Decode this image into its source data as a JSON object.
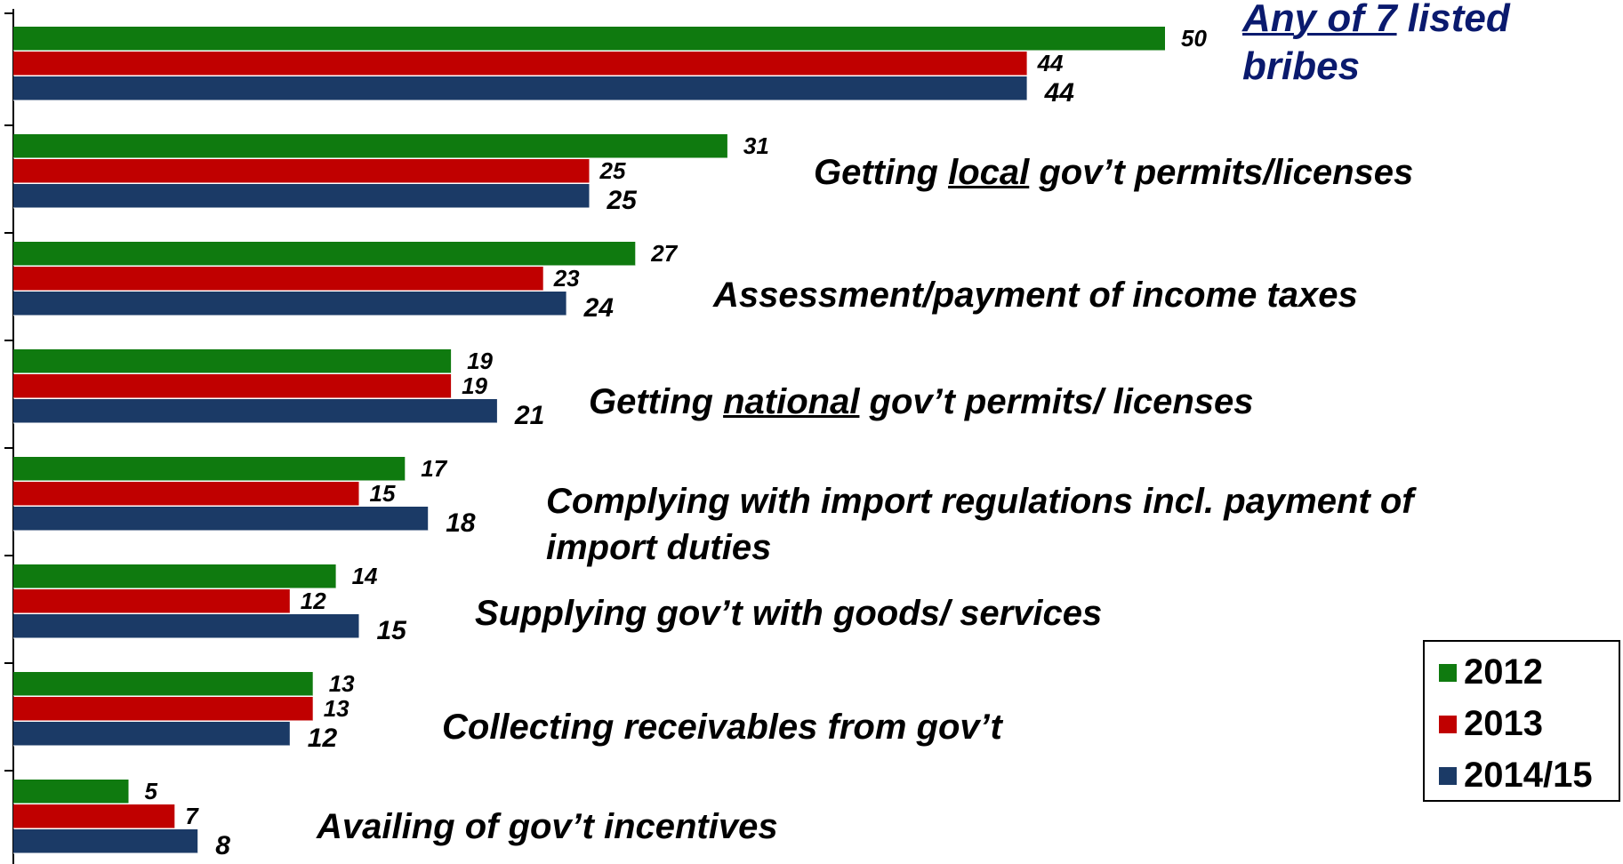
{
  "chart_data": {
    "type": "bar",
    "orientation": "horizontal",
    "categories": [
      "Any of 7 listed bribes",
      "Getting local gov’t permits/licenses",
      "Assessment/payment of income taxes",
      "Getting national gov’t permits/ licenses",
      "Complying with import regulations incl. payment of import duties",
      "Supplying gov’t with goods/ services",
      "Collecting receivables from gov’t",
      "Availing of gov’t incentives"
    ],
    "series": [
      {
        "name": "2012",
        "color": "#0f7a0f",
        "values": [
          50,
          31,
          27,
          19,
          17,
          14,
          13,
          5
        ]
      },
      {
        "name": "2013",
        "color": "#c00000",
        "values": [
          44,
          25,
          23,
          19,
          15,
          12,
          13,
          7
        ]
      },
      {
        "name": "2014/15",
        "color": "#1b3a66",
        "values": [
          44,
          25,
          24,
          21,
          18,
          15,
          12,
          8
        ]
      }
    ],
    "xlim": [
      0,
      50
    ],
    "grid": false,
    "legend_position": "bottom-right",
    "category_label_segments": [
      [
        {
          "t": "Any of 7",
          "u": true
        },
        {
          "t": " listed"
        },
        {
          "t": "\nbribes"
        }
      ],
      [
        {
          "t": "Getting "
        },
        {
          "t": "local",
          "u": true
        },
        {
          "t": " gov’t permits/licenses"
        }
      ],
      [
        {
          "t": "Assessment/payment of income taxes"
        }
      ],
      [
        {
          "t": "Getting "
        },
        {
          "t": "national",
          "u": true
        },
        {
          "t": " gov’t permits/ licenses"
        }
      ],
      [
        {
          "t": "Complying with import regulations incl. payment of\nimport duties"
        }
      ],
      [
        {
          "t": "Supplying gov’t with goods/ services"
        }
      ],
      [
        {
          "t": "Collecting receivables from gov’t"
        }
      ],
      [
        {
          "t": "Availing of gov’t incentives"
        }
      ]
    ]
  },
  "legend": {
    "items": [
      {
        "label": "2012",
        "color": "#0f7a0f"
      },
      {
        "label": "2013",
        "color": "#c00000"
      },
      {
        "label": "2014/15",
        "color": "#1b3a66"
      }
    ]
  }
}
